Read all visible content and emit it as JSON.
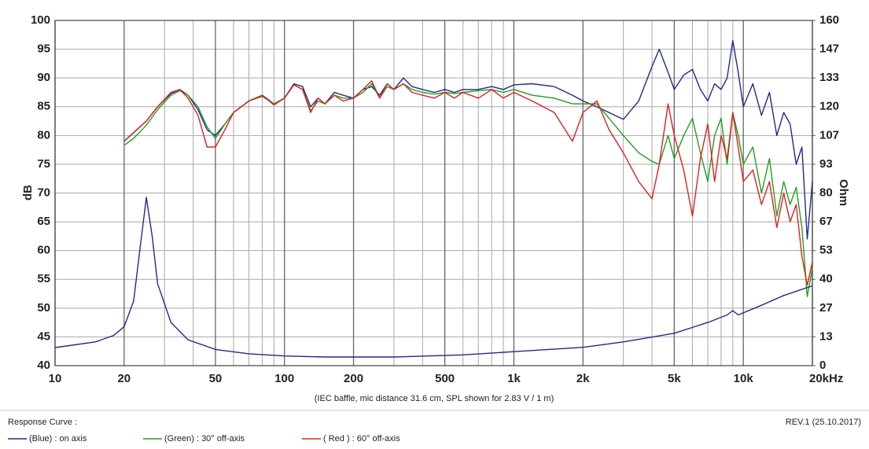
{
  "chart_data": {
    "type": "line",
    "ylabel": "dB",
    "y2label": "Ohm",
    "caption": "(IEC baffle, mic distance 31.6 cm, SPL shown for 2.83 V / 1 m)",
    "legend_title": "Response Curve :",
    "revision": "REV.1 (25.10.2017)",
    "xscale": "log",
    "grid": true,
    "xlim": [
      10,
      20000
    ],
    "xticks": [
      10,
      20,
      50,
      100,
      200,
      500,
      {
        "value": 1000,
        "label": "1k"
      },
      {
        "value": 2000,
        "label": "2k"
      },
      {
        "value": 5000,
        "label": "5k"
      },
      {
        "value": 10000,
        "label": "10k"
      },
      {
        "value": 20000,
        "label": "20kHz"
      }
    ],
    "x_minor_ticks": [
      30,
      40,
      60,
      70,
      80,
      90,
      300,
      400,
      600,
      700,
      800,
      900,
      3000,
      4000,
      6000,
      7000,
      8000,
      9000
    ],
    "ylim": [
      40,
      100
    ],
    "yticks": [
      40,
      45,
      50,
      55,
      60,
      65,
      70,
      75,
      80,
      85,
      90,
      95,
      100
    ],
    "y2lim": [
      0,
      160
    ],
    "y2ticks": [
      0,
      {
        "value": 13.33,
        "label": "13"
      },
      {
        "value": 26.67,
        "label": "27"
      },
      40,
      {
        "value": 53.33,
        "label": "53"
      },
      {
        "value": 66.67,
        "label": "67"
      },
      80,
      {
        "value": 93.33,
        "label": "93"
      },
      {
        "value": 106.67,
        "label": "107"
      },
      120,
      {
        "value": 133.33,
        "label": "133"
      },
      {
        "value": 146.67,
        "label": "147"
      },
      160
    ],
    "series": [
      {
        "name": "(Blue)  : on axis",
        "color": "#1f2a8c",
        "x": [
          20,
          22,
          25,
          28,
          32,
          35,
          38,
          42,
          46,
          50,
          55,
          60,
          70,
          80,
          90,
          100,
          110,
          120,
          130,
          140,
          150,
          165,
          180,
          200,
          220,
          240,
          260,
          280,
          300,
          330,
          360,
          400,
          450,
          500,
          550,
          600,
          700,
          800,
          900,
          1000,
          1200,
          1500,
          1800,
          2000,
          2300,
          2600,
          3000,
          3500,
          4000,
          4300,
          4700,
          5000,
          5500,
          6000,
          6500,
          7000,
          7500,
          8000,
          8500,
          9000,
          9500,
          10000,
          11000,
          12000,
          13000,
          14000,
          15000,
          16000,
          17000,
          18000,
          19000,
          20000
        ],
        "values": [
          79,
          80.5,
          82.5,
          85,
          87.3,
          88,
          87,
          84.5,
          81,
          80,
          82,
          84,
          86,
          87,
          85.5,
          86.5,
          89,
          88.5,
          85,
          86.5,
          85.5,
          87.5,
          87,
          86.5,
          88,
          88.5,
          87,
          89,
          88,
          90,
          88.5,
          88,
          87.5,
          88,
          87.5,
          88,
          88,
          88.5,
          88,
          88.8,
          89,
          88.5,
          87,
          86,
          85,
          84,
          82.8,
          86,
          92,
          95,
          91,
          88,
          90.5,
          91.5,
          88,
          86,
          89,
          88,
          90,
          96.5,
          91,
          85,
          89,
          83.5,
          87.5,
          80,
          84,
          82,
          75,
          78,
          62,
          72
        ]
      },
      {
        "name": "(Green) : 30° off-axis",
        "color": "#1fa01f",
        "x": [
          20,
          22,
          25,
          28,
          32,
          35,
          38,
          42,
          46,
          50,
          55,
          60,
          70,
          80,
          90,
          100,
          110,
          120,
          130,
          140,
          150,
          165,
          180,
          200,
          220,
          240,
          260,
          280,
          300,
          330,
          360,
          400,
          450,
          500,
          550,
          600,
          700,
          800,
          900,
          1000,
          1200,
          1500,
          1800,
          2000,
          2300,
          2600,
          3000,
          3500,
          4000,
          4300,
          4700,
          5000,
          5500,
          6000,
          6500,
          7000,
          7500,
          8000,
          8500,
          9000,
          9500,
          10000,
          11000,
          12000,
          13000,
          14000,
          15000,
          16000,
          17000,
          18000,
          19000,
          20000
        ],
        "values": [
          78.3,
          79.5,
          81.8,
          84.5,
          87,
          87.8,
          87,
          85,
          81.5,
          79.5,
          82,
          84,
          86,
          86.8,
          85.5,
          86.5,
          88.8,
          88,
          84.3,
          86,
          85.5,
          87,
          86.5,
          86.5,
          87.5,
          89,
          86.5,
          88.5,
          88,
          89,
          88,
          87.5,
          87.2,
          87.5,
          87.3,
          87.5,
          87.8,
          88,
          87.5,
          88,
          87,
          86.5,
          85.5,
          85.5,
          85.5,
          83,
          80,
          77,
          75.5,
          75,
          80,
          76,
          80,
          83,
          77,
          72,
          80,
          83,
          75,
          84,
          80,
          75,
          78,
          70,
          76,
          66,
          72,
          68,
          71,
          64,
          52,
          57
        ]
      },
      {
        "name": "( Red ) : 60° off-axis",
        "color": "#e02020",
        "x": [
          20,
          22,
          25,
          28,
          32,
          35,
          38,
          42,
          46,
          50,
          55,
          60,
          70,
          80,
          90,
          100,
          110,
          120,
          130,
          140,
          150,
          165,
          180,
          200,
          220,
          240,
          260,
          280,
          300,
          330,
          360,
          400,
          450,
          500,
          550,
          600,
          700,
          800,
          900,
          1000,
          1200,
          1500,
          1800,
          2000,
          2300,
          2600,
          3000,
          3500,
          4000,
          4300,
          4700,
          5000,
          5500,
          6000,
          6500,
          7000,
          7500,
          8000,
          8500,
          9000,
          9500,
          10000,
          11000,
          12000,
          13000,
          14000,
          15000,
          16000,
          17000,
          18000,
          19000,
          20000
        ],
        "values": [
          79,
          80.5,
          82.5,
          85,
          87.5,
          88,
          86.5,
          83.5,
          78,
          78,
          81,
          84,
          86,
          87,
          85.3,
          86.5,
          88.8,
          88,
          84,
          86.5,
          85.5,
          87,
          86,
          86.5,
          88,
          89.5,
          86.5,
          89,
          88,
          89,
          87.5,
          87,
          86.5,
          87.5,
          86.5,
          87.5,
          86.5,
          88,
          86.5,
          87.5,
          86,
          84,
          79,
          84,
          86,
          81,
          77,
          72,
          69,
          75,
          85.5,
          80,
          74,
          66,
          76,
          82,
          72,
          80,
          76,
          84,
          78,
          72,
          74,
          68,
          72,
          64,
          70,
          65,
          68,
          59,
          54,
          58
        ]
      },
      {
        "axis": "y2",
        "color": "#1f2a8c",
        "x": [
          10,
          15,
          18,
          20,
          22,
          23.5,
          25,
          26.5,
          28,
          32,
          38,
          50,
          70,
          100,
          150,
          300,
          600,
          1000,
          2000,
          3000,
          5000,
          7000,
          8500,
          9000,
          9500,
          12000,
          15000,
          20000
        ],
        "values": [
          8.4,
          11,
          14,
          18,
          30,
          55,
          78,
          60,
          38,
          20,
          12,
          7.5,
          5.5,
          4.5,
          4,
          4,
          5,
          6.5,
          8.5,
          11,
          15,
          20,
          23.5,
          25.5,
          23.5,
          28,
          32.5,
          37
        ]
      }
    ]
  }
}
